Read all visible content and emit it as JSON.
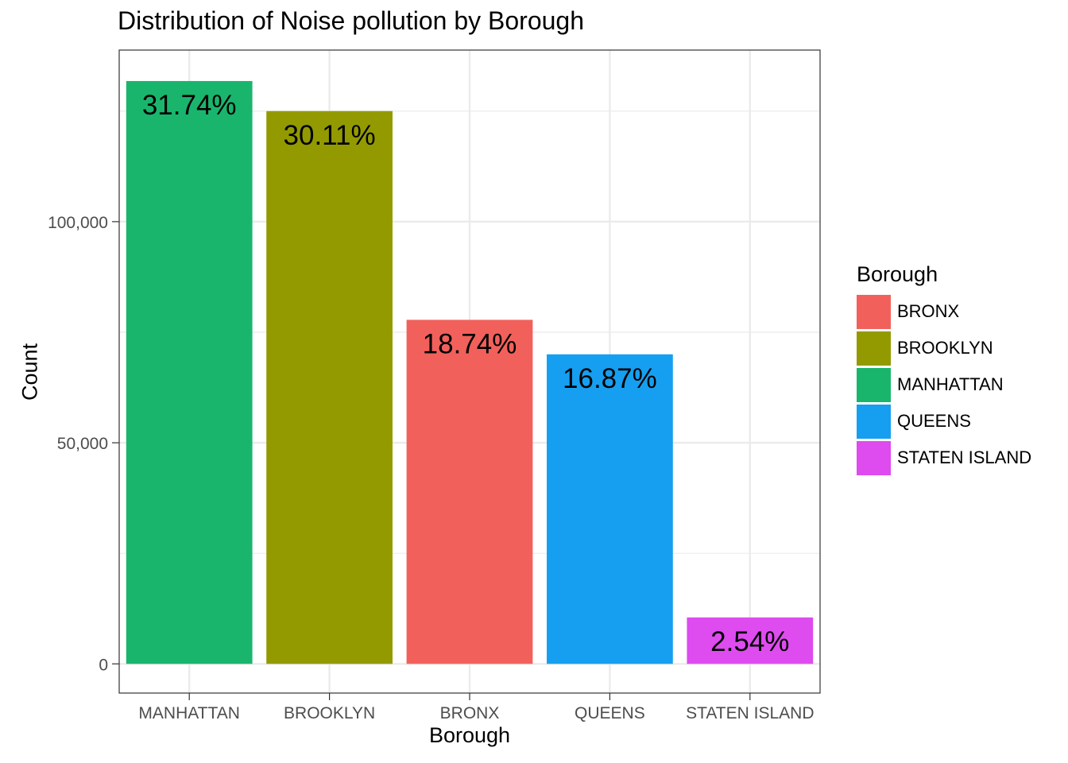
{
  "chart_data": {
    "type": "bar",
    "title": "Distribution of Noise pollution by Borough",
    "xlabel": "Borough",
    "ylabel": "Count",
    "categories": [
      "MANHATTAN",
      "BROOKLYN",
      "BRONX",
      "QUEENS",
      "STATEN ISLAND"
    ],
    "values": [
      131800,
      125000,
      77800,
      70000,
      10500
    ],
    "labels": [
      "31.74%",
      "30.11%",
      "18.74%",
      "16.87%",
      "2.54%"
    ],
    "colors": [
      "#1AB56D",
      "#939A00",
      "#F2605B",
      "#169FF0",
      "#DE4BEF"
    ],
    "ylim": [
      -6600,
      138800
    ],
    "yticks": [
      0,
      50000,
      100000
    ],
    "ytick_labels": [
      "0",
      "50,000",
      "100,000"
    ],
    "grid": true,
    "legend": {
      "title": "Borough",
      "placement": "right",
      "items": [
        {
          "label": "BRONX",
          "color": "#F2605B"
        },
        {
          "label": "BROOKLYN",
          "color": "#939A00"
        },
        {
          "label": "MANHATTAN",
          "color": "#1AB56D"
        },
        {
          "label": "QUEENS",
          "color": "#169FF0"
        },
        {
          "label": "STATEN ISLAND",
          "color": "#DE4BEF"
        }
      ]
    }
  }
}
